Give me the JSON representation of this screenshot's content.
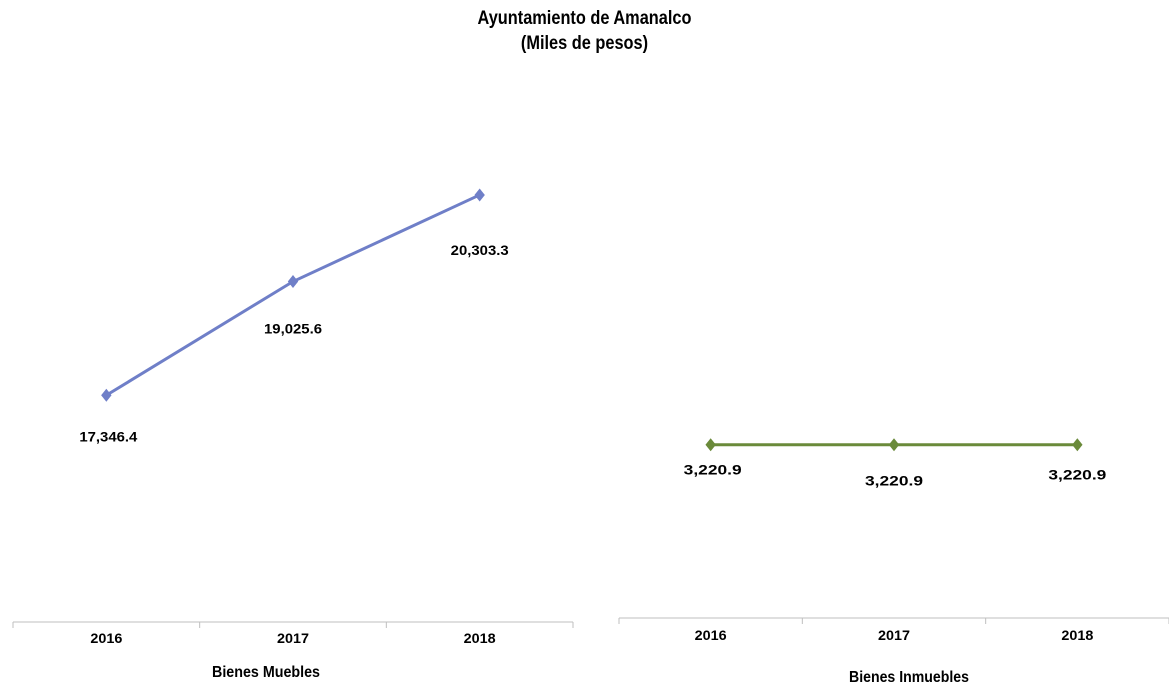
{
  "header": {
    "title": "Ayuntamiento de Amanalco",
    "subtitle": "(Miles de pesos)"
  },
  "colors": {
    "muebles": "#6f7fc8",
    "inmuebles": "#6a8a3a",
    "axis": "#bfbfbf"
  },
  "chart_data": [
    {
      "type": "line",
      "xlabel": "Bienes Muebles",
      "ylabel": "",
      "categories": [
        "2016",
        "2017",
        "2018"
      ],
      "values": [
        17346.4,
        19025.6,
        20303.3
      ],
      "value_labels": [
        "17,346.4",
        "19,025.6",
        "20,303.3"
      ],
      "ylim": [
        14000,
        22000
      ],
      "grid": false,
      "marker": "diamond"
    },
    {
      "type": "line",
      "xlabel": "Bienes Inmuebles",
      "ylabel": "",
      "categories": [
        "2016",
        "2017",
        "2018"
      ],
      "values": [
        3220.9,
        3220.9,
        3220.9
      ],
      "value_labels": [
        "3,220.9",
        "3,220.9",
        "3,220.9"
      ],
      "ylim": [
        0,
        10000
      ],
      "grid": false,
      "marker": "diamond"
    }
  ]
}
